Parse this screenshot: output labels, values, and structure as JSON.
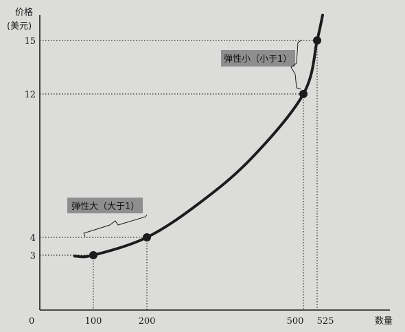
{
  "chart_data": {
    "type": "line",
    "y_title_line1": "价格",
    "y_title_line2": "(美元)",
    "x_title": "数量",
    "origin_label": "0",
    "x_ticks": [
      100,
      200,
      500,
      525
    ],
    "y_ticks": [
      3,
      4,
      12,
      15
    ],
    "points": [
      {
        "x": 100,
        "y": 3
      },
      {
        "x": 200,
        "y": 4
      },
      {
        "x": 500,
        "y": 12
      },
      {
        "x": 525,
        "y": 15
      }
    ],
    "curve": [
      [
        65,
        2.95
      ],
      [
        100,
        3
      ],
      [
        200,
        4
      ],
      [
        300,
        5.9
      ],
      [
        400,
        8.4
      ],
      [
        500,
        12
      ],
      [
        525,
        15
      ],
      [
        535,
        16.1
      ]
    ],
    "annotations": [
      {
        "text": "弹性大（大于1）",
        "near": "lower-left"
      },
      {
        "text": "弹性小（小于1）",
        "near": "upper-right"
      }
    ],
    "colors": {
      "curve": "#1c1c1c",
      "callout_fill": "#8e8e8e",
      "background": "#dcdcda"
    }
  }
}
